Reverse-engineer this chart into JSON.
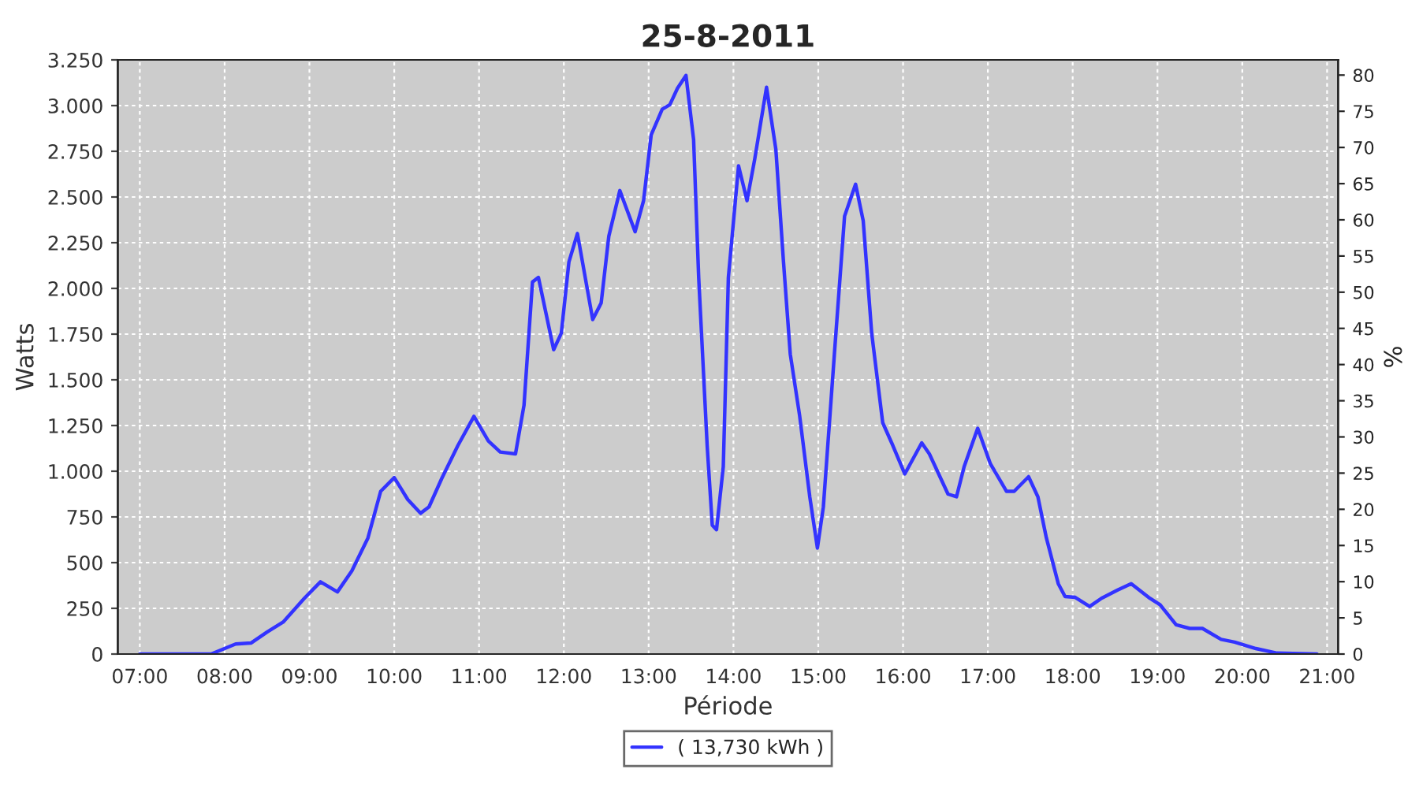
{
  "chart_data": {
    "type": "line",
    "title": "25-8-2011",
    "xlabel": "Période",
    "ylabel": "Watts",
    "y2label": "%",
    "x": [
      7.0,
      7.84,
      8.13,
      8.31,
      8.5,
      8.69,
      8.94,
      9.13,
      9.33,
      9.5,
      9.69,
      9.84,
      10.0,
      10.16,
      10.31,
      10.41,
      10.56,
      10.75,
      10.94,
      11.11,
      11.25,
      11.43,
      11.53,
      11.63,
      11.7,
      11.88,
      11.97,
      12.06,
      12.16,
      12.34,
      12.44,
      12.53,
      12.66,
      12.84,
      12.94,
      13.03,
      13.16,
      13.25,
      13.34,
      13.44,
      13.53,
      13.59,
      13.69,
      13.75,
      13.8,
      13.88,
      13.94,
      14.06,
      14.16,
      14.25,
      14.39,
      14.5,
      14.59,
      14.67,
      14.78,
      14.9,
      14.99,
      15.06,
      15.19,
      15.31,
      15.44,
      15.53,
      15.63,
      15.76,
      15.88,
      16.02,
      16.22,
      16.31,
      16.53,
      16.63,
      16.72,
      16.88,
      17.03,
      17.22,
      17.31,
      17.48,
      17.59,
      17.69,
      17.83,
      17.91,
      18.03,
      18.2,
      18.34,
      18.53,
      18.69,
      18.91,
      19.03,
      19.22,
      19.38,
      19.53,
      19.75,
      19.91,
      20.16,
      20.41,
      20.88
    ],
    "series": [
      {
        "name": "( 13,730 kWh )",
        "color": "#3333ff",
        "values": [
          0,
          0,
          55,
          60,
          120,
          175,
          305,
          395,
          340,
          455,
          635,
          890,
          965,
          845,
          770,
          805,
          960,
          1140,
          1300,
          1165,
          1105,
          1095,
          1360,
          2035,
          2060,
          1665,
          1755,
          2145,
          2300,
          1830,
          1920,
          2285,
          2535,
          2310,
          2480,
          2840,
          2980,
          3005,
          3095,
          3165,
          2815,
          2060,
          1140,
          705,
          680,
          1025,
          2060,
          2670,
          2480,
          2705,
          3100,
          2760,
          2145,
          1640,
          1305,
          860,
          580,
          805,
          1640,
          2395,
          2570,
          2370,
          1755,
          1265,
          1140,
          985,
          1155,
          1095,
          875,
          860,
          1025,
          1235,
          1040,
          890,
          890,
          970,
          860,
          635,
          385,
          315,
          310,
          260,
          305,
          350,
          385,
          305,
          270,
          160,
          140,
          140,
          80,
          65,
          30,
          5,
          0
        ]
      }
    ],
    "xlim": [
      6.74,
      21.13
    ],
    "xticks": [
      {
        "value": 7,
        "label": "07:00"
      },
      {
        "value": 8,
        "label": "08:00"
      },
      {
        "value": 9,
        "label": "09:00"
      },
      {
        "value": 10,
        "label": "10:00"
      },
      {
        "value": 11,
        "label": "11:00"
      },
      {
        "value": 12,
        "label": "12:00"
      },
      {
        "value": 13,
        "label": "13:00"
      },
      {
        "value": 14,
        "label": "14:00"
      },
      {
        "value": 15,
        "label": "15:00"
      },
      {
        "value": 16,
        "label": "16:00"
      },
      {
        "value": 17,
        "label": "17:00"
      },
      {
        "value": 18,
        "label": "18:00"
      },
      {
        "value": 19,
        "label": "19:00"
      },
      {
        "value": 20,
        "label": "20:00"
      },
      {
        "value": 21,
        "label": "21:00"
      }
    ],
    "ylim": [
      0,
      3250
    ],
    "yticks": [
      0,
      250,
      500,
      750,
      {
        "value": 1000,
        "label": "1.000"
      },
      {
        "value": 1250,
        "label": "1.250"
      },
      {
        "value": 1500,
        "label": "1.500"
      },
      {
        "value": 1750,
        "label": "1.750"
      },
      {
        "value": 2000,
        "label": "2.000"
      },
      {
        "value": 2250,
        "label": "2.250"
      },
      {
        "value": 2500,
        "label": "2.500"
      },
      {
        "value": 2750,
        "label": "2.750"
      },
      {
        "value": 3000,
        "label": "3.000"
      },
      {
        "value": 3250,
        "label": "3.250"
      }
    ],
    "y2lim": [
      0,
      82.1
    ],
    "y2ticks": [
      0,
      5,
      10,
      15,
      20,
      25,
      30,
      35,
      40,
      45,
      50,
      55,
      60,
      65,
      70,
      75,
      80
    ],
    "grid": true,
    "legend": "bottom",
    "marker": "none",
    "line_style": "solid"
  }
}
